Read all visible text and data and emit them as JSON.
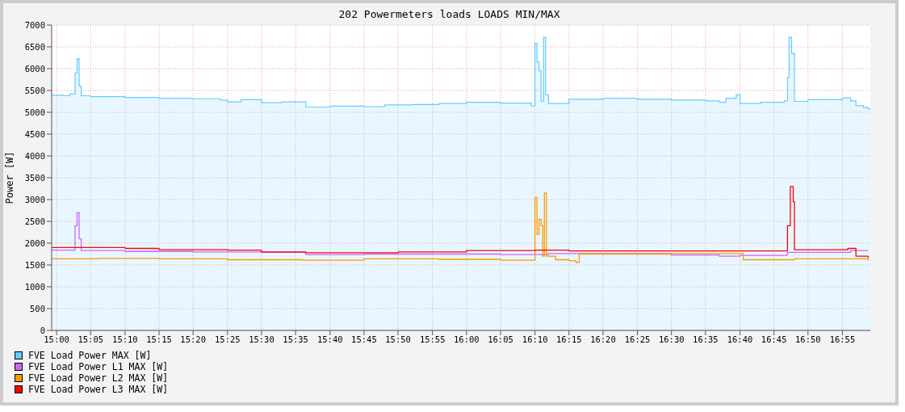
{
  "chart_data": {
    "type": "step",
    "title": "202 Powermeters loads LOADS MIN/MAX",
    "ylabel": "Power [W]",
    "xlim": [
      14.988,
      16.985
    ],
    "ylim": [
      0,
      7000
    ],
    "xticks": [
      {
        "value": 15,
        "label": "15:00"
      },
      {
        "value": 15.083,
        "label": "15:05"
      },
      {
        "value": 15.167,
        "label": "15:10"
      },
      {
        "value": 15.25,
        "label": "15:15"
      },
      {
        "value": 15.333,
        "label": "15:20"
      },
      {
        "value": 15.417,
        "label": "15:25"
      },
      {
        "value": 15.5,
        "label": "15:30"
      },
      {
        "value": 15.583,
        "label": "15:35"
      },
      {
        "value": 15.667,
        "label": "15:40"
      },
      {
        "value": 15.75,
        "label": "15:45"
      },
      {
        "value": 15.833,
        "label": "15:50"
      },
      {
        "value": 15.917,
        "label": "15:55"
      },
      {
        "value": 16,
        "label": "16:00"
      },
      {
        "value": 16.083,
        "label": "16:05"
      },
      {
        "value": 16.167,
        "label": "16:10"
      },
      {
        "value": 16.25,
        "label": "16:15"
      },
      {
        "value": 16.333,
        "label": "16:20"
      },
      {
        "value": 16.417,
        "label": "16:25"
      },
      {
        "value": 16.5,
        "label": "16:30"
      },
      {
        "value": 16.583,
        "label": "16:35"
      },
      {
        "value": 16.667,
        "label": "16:40"
      },
      {
        "value": 16.75,
        "label": "16:45"
      },
      {
        "value": 16.833,
        "label": "16:50"
      },
      {
        "value": 16.917,
        "label": "16:55"
      }
    ],
    "yticks": [
      0,
      500,
      1000,
      1500,
      2000,
      2500,
      3000,
      3500,
      4000,
      4500,
      5000,
      5500,
      6000,
      6500,
      7000
    ],
    "grid": true,
    "legend": "bottom",
    "marker": "none",
    "series": [
      {
        "name": "FVE Load Power MAX [W]",
        "color": "#66ccff",
        "type": "area",
        "x": [
          14.988,
          15.017,
          15.017,
          15.033,
          15.033,
          15.045,
          15.045,
          15.05,
          15.05,
          15.055,
          15.055,
          15.06,
          15.06,
          15.083,
          15.083,
          15.167,
          15.167,
          15.25,
          15.25,
          15.333,
          15.333,
          15.4,
          15.4,
          15.417,
          15.417,
          15.45,
          15.45,
          15.5,
          15.5,
          15.55,
          15.55,
          15.608,
          15.608,
          15.667,
          15.667,
          15.75,
          15.75,
          15.8,
          15.8,
          15.867,
          15.867,
          15.933,
          15.933,
          16,
          16,
          16.083,
          16.083,
          16.158,
          16.158,
          16.167,
          16.167,
          16.172,
          16.172,
          16.177,
          16.177,
          16.182,
          16.182,
          16.188,
          16.188,
          16.193,
          16.193,
          16.2,
          16.2,
          16.25,
          16.25,
          16.333,
          16.333,
          16.417,
          16.417,
          16.5,
          16.5,
          16.583,
          16.583,
          16.617,
          16.617,
          16.633,
          16.633,
          16.658,
          16.658,
          16.667,
          16.667,
          16.717,
          16.717,
          16.775,
          16.775,
          16.783,
          16.783,
          16.787,
          16.787,
          16.793,
          16.793,
          16.8,
          16.8,
          16.833,
          16.833,
          16.917,
          16.917,
          16.937,
          16.937,
          16.95,
          16.95,
          16.968,
          16.968,
          16.98,
          16.98,
          16.985
        ],
        "values": [
          5390,
          5390,
          5380,
          5380,
          5420,
          5420,
          5900,
          5900,
          6230,
          6230,
          5600,
          5600,
          5380,
          5380,
          5360,
          5360,
          5340,
          5340,
          5320,
          5320,
          5310,
          5310,
          5280,
          5280,
          5240,
          5240,
          5290,
          5290,
          5220,
          5220,
          5240,
          5240,
          5120,
          5120,
          5140,
          5140,
          5130,
          5130,
          5170,
          5170,
          5180,
          5180,
          5200,
          5200,
          5230,
          5230,
          5210,
          5210,
          5150,
          5150,
          6580,
          6580,
          6150,
          6150,
          5950,
          5950,
          5250,
          5250,
          6720,
          6720,
          5400,
          5400,
          5200,
          5200,
          5300,
          5300,
          5320,
          5320,
          5300,
          5300,
          5280,
          5280,
          5260,
          5260,
          5230,
          5230,
          5320,
          5320,
          5400,
          5400,
          5200,
          5200,
          5230,
          5230,
          5260,
          5260,
          5800,
          5800,
          6720,
          6720,
          6350,
          6350,
          5250,
          5250,
          5290,
          5290,
          5330,
          5330,
          5260,
          5260,
          5150,
          5150,
          5110,
          5110,
          5080,
          5080
        ]
      },
      {
        "name": "FVE Load Power L1 MAX [W]",
        "color": "#cc66ff",
        "x": [
          14.988,
          15.045,
          15.05,
          15.055,
          15.06,
          15.167,
          15.333,
          15.5,
          15.608,
          15.75,
          15.933,
          16.083,
          16.2,
          16.333,
          16.5,
          16.617,
          16.667,
          16.783,
          16.937,
          16.98
        ],
        "values": [
          1840,
          2400,
          2700,
          2100,
          1830,
          1810,
          1800,
          1790,
          1740,
          1750,
          1750,
          1740,
          1760,
          1760,
          1730,
          1700,
          1720,
          1790,
          1830,
          1830
        ]
      },
      {
        "name": "FVE Load Power L2 MAX [W]",
        "color": "#ff9900",
        "x": [
          14.988,
          15.1,
          15.25,
          15.417,
          15.6,
          15.75,
          15.933,
          16.083,
          16.167,
          16.172,
          16.177,
          16.182,
          16.186,
          16.19,
          16.195,
          16.217,
          16.25,
          16.267,
          16.275,
          16.5,
          16.667,
          16.675,
          16.8,
          16.93,
          16.98
        ],
        "values": [
          1640,
          1650,
          1640,
          1620,
          1610,
          1640,
          1630,
          1610,
          3050,
          2200,
          2550,
          2400,
          1700,
          3150,
          1700,
          1620,
          1600,
          1560,
          1750,
          1760,
          1760,
          1620,
          1640,
          1640,
          1600
        ]
      },
      {
        "name": "FVE Load Power L3 MAX [W]",
        "color": "#ff0000",
        "x": [
          14.988,
          15.167,
          15.25,
          15.417,
          15.5,
          15.608,
          15.75,
          15.833,
          16,
          16.167,
          16.25,
          16.5,
          16.667,
          16.775,
          16.783,
          16.79,
          16.797,
          16.8,
          16.93,
          16.95,
          16.98
        ],
        "values": [
          1900,
          1880,
          1850,
          1840,
          1800,
          1780,
          1780,
          1800,
          1830,
          1840,
          1820,
          1820,
          1820,
          1820,
          2400,
          3300,
          2950,
          1850,
          1880,
          1700,
          1660
        ]
      }
    ]
  }
}
